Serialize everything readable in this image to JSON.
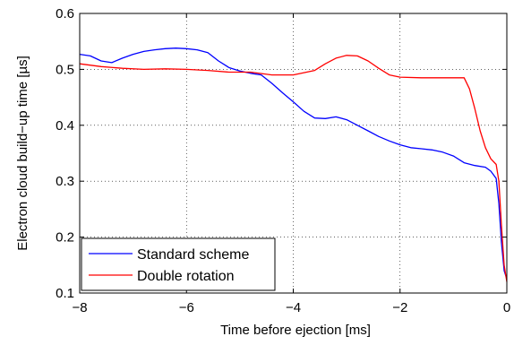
{
  "chart_data": {
    "type": "line",
    "title": "",
    "xlabel": "Time before ejection [ms]",
    "ylabel": "Electron cloud build−up time [µs]",
    "xlim": [
      -8,
      0
    ],
    "ylim": [
      0.1,
      0.6
    ],
    "xticks": [
      -8,
      -6,
      -4,
      -2,
      0
    ],
    "xtick_labels": [
      "−8",
      "−6",
      "−4",
      "−2",
      "0"
    ],
    "yticks": [
      0.1,
      0.2,
      0.3,
      0.4,
      0.5,
      0.6
    ],
    "ytick_labels": [
      "0.1",
      "0.2",
      "0.3",
      "0.4",
      "0.5",
      "0.6"
    ],
    "grid": true,
    "legend_position": "bottom-left",
    "series": [
      {
        "name": "Standard scheme",
        "color": "#0000ff",
        "x": [
          -8.0,
          -7.8,
          -7.6,
          -7.4,
          -7.2,
          -7.0,
          -6.8,
          -6.6,
          -6.4,
          -6.2,
          -6.0,
          -5.8,
          -5.6,
          -5.4,
          -5.2,
          -5.0,
          -4.8,
          -4.6,
          -4.4,
          -4.2,
          -4.0,
          -3.8,
          -3.6,
          -3.4,
          -3.2,
          -3.0,
          -2.8,
          -2.6,
          -2.4,
          -2.2,
          -2.0,
          -1.8,
          -1.6,
          -1.4,
          -1.2,
          -1.0,
          -0.8,
          -0.6,
          -0.4,
          -0.3,
          -0.2,
          -0.15,
          -0.1,
          -0.05,
          0.0
        ],
        "y": [
          0.527,
          0.524,
          0.515,
          0.512,
          0.52,
          0.527,
          0.532,
          0.535,
          0.537,
          0.538,
          0.537,
          0.535,
          0.53,
          0.515,
          0.503,
          0.497,
          0.493,
          0.49,
          0.475,
          0.458,
          0.442,
          0.425,
          0.413,
          0.412,
          0.415,
          0.41,
          0.4,
          0.39,
          0.38,
          0.372,
          0.365,
          0.36,
          0.358,
          0.356,
          0.352,
          0.345,
          0.333,
          0.328,
          0.325,
          0.318,
          0.305,
          0.26,
          0.19,
          0.14,
          0.125
        ]
      },
      {
        "name": "Double rotation",
        "color": "#ff0000",
        "x": [
          -8.0,
          -7.6,
          -7.2,
          -6.8,
          -6.4,
          -6.0,
          -5.6,
          -5.2,
          -4.8,
          -4.4,
          -4.0,
          -3.6,
          -3.4,
          -3.2,
          -3.0,
          -2.8,
          -2.6,
          -2.4,
          -2.2,
          -2.0,
          -1.6,
          -1.2,
          -0.8,
          -0.7,
          -0.6,
          -0.5,
          -0.4,
          -0.3,
          -0.2,
          -0.15,
          -0.1,
          -0.05,
          0.0
        ],
        "y": [
          0.51,
          0.505,
          0.502,
          0.5,
          0.501,
          0.5,
          0.498,
          0.495,
          0.495,
          0.49,
          0.49,
          0.498,
          0.51,
          0.52,
          0.525,
          0.524,
          0.515,
          0.502,
          0.49,
          0.486,
          0.485,
          0.485,
          0.485,
          0.465,
          0.43,
          0.39,
          0.36,
          0.34,
          0.33,
          0.3,
          0.22,
          0.15,
          0.12
        ]
      }
    ]
  }
}
